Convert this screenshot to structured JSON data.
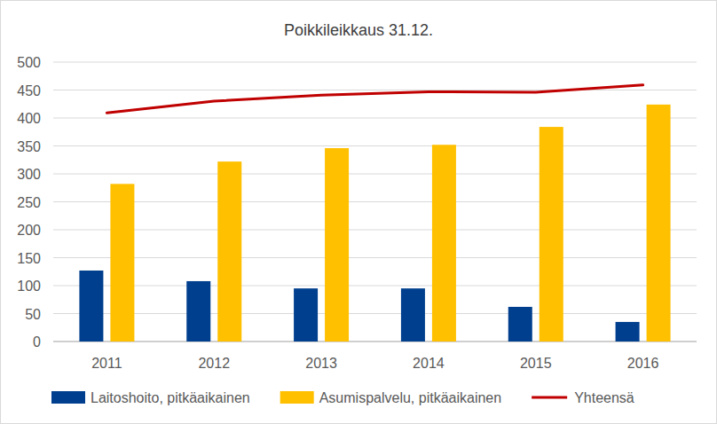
{
  "chart_data": {
    "type": "bar",
    "title": "Poikkileikkaus 31.12.",
    "categories": [
      "2011",
      "2012",
      "2013",
      "2014",
      "2015",
      "2016"
    ],
    "series": [
      {
        "name": "Laitoshoito, pitkäaikainen",
        "type": "bar",
        "color": "#003f8e",
        "values": [
          127,
          108,
          95,
          95,
          62,
          35
        ]
      },
      {
        "name": "Asumispalvelu, pitkäaikainen",
        "type": "bar",
        "color": "#ffc000",
        "values": [
          282,
          322,
          346,
          352,
          384,
          424
        ]
      },
      {
        "name": "Yhteensä",
        "type": "line",
        "color": "#c00000",
        "values": [
          409,
          430,
          441,
          447,
          446,
          459
        ]
      }
    ],
    "ylim": [
      0,
      500
    ],
    "yticks": [
      0,
      50,
      100,
      150,
      200,
      250,
      300,
      350,
      400,
      450,
      500
    ],
    "grid": true,
    "legend": "bottom"
  }
}
